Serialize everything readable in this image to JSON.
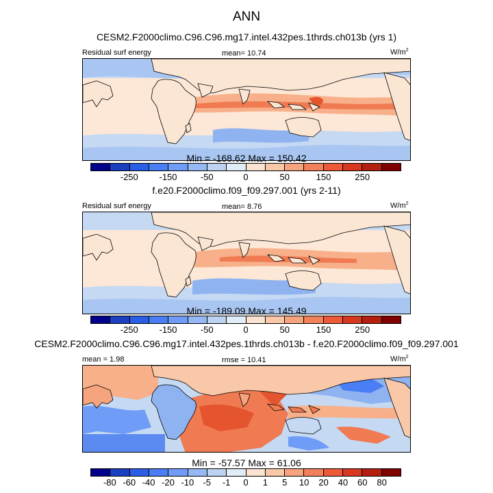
{
  "figure": {
    "title": "ANN"
  },
  "panels": [
    {
      "title": "CESM2.F2000climo.C96.C96.mg17.intel.432pes.1thrds.ch013b (yrs 1)",
      "left_label": "Residual surf energy",
      "center_label": "mean=  10.74",
      "units": "W/m",
      "units_sup": "2",
      "minmax": "Min = -168.62 Max = 150.42"
    },
    {
      "title": "f.e20.F2000climo.f09_f09.297.001 (yrs 2-11)",
      "left_label": "Residual surf energy",
      "center_label": "mean=   8.76",
      "units": "W/m",
      "units_sup": "2",
      "minmax": "Min = -189.09 Max = 145.49"
    },
    {
      "title": "CESM2.F2000climo.C96.C96.mg17.intel.432pes.1thrds.ch013b - f.e20.F2000climo.f09_f09.297.001",
      "left_label": "mean =   1.98",
      "center_label": "rmse =  10.41",
      "units": "W/m",
      "units_sup": "2",
      "minmax": "Min = -57.57 Max = 61.06"
    }
  ],
  "colorbars": {
    "abs": {
      "colors": [
        "#00008b",
        "#1a3fbf",
        "#2b5ee6",
        "#4a7ef5",
        "#6f9cf7",
        "#96b9f5",
        "#bed3f2",
        "#e2ecf7",
        "#fbe3d2",
        "#f9c8a9",
        "#f6a47e",
        "#f2805a",
        "#ec5a38",
        "#d83820",
        "#b3200f",
        "#800000"
      ],
      "ticks": [
        "-250",
        "-150",
        "-50",
        "0",
        "50",
        "150",
        "250"
      ]
    },
    "diff": {
      "colors": [
        "#00008b",
        "#1a3fbf",
        "#2b5ee6",
        "#4a7ef5",
        "#6f9cf7",
        "#96b9f5",
        "#bed3f2",
        "#e2ecf7",
        "#fbe3d2",
        "#f9c8a9",
        "#f6a47e",
        "#f2805a",
        "#ec5a38",
        "#d83820",
        "#b3200f",
        "#800000"
      ],
      "ticks": [
        "-80",
        "-60",
        "-40",
        "-20",
        "-10",
        "-5",
        "-1",
        "0",
        "1",
        "5",
        "10",
        "20",
        "40",
        "60",
        "80"
      ]
    }
  },
  "map_colors": {
    "land": "#fbe6d4",
    "ocean_pale": "#fde7d6",
    "ocean_light_blue": "#c5d9f3",
    "ocean_blue": "#8fb3f0",
    "ocean_mid_blue": "#5b8bf0",
    "ocean_orange": "#f7b08a",
    "ocean_red": "#f07a52",
    "ocean_deep_red": "#e4552f",
    "coast": "#000000"
  }
}
